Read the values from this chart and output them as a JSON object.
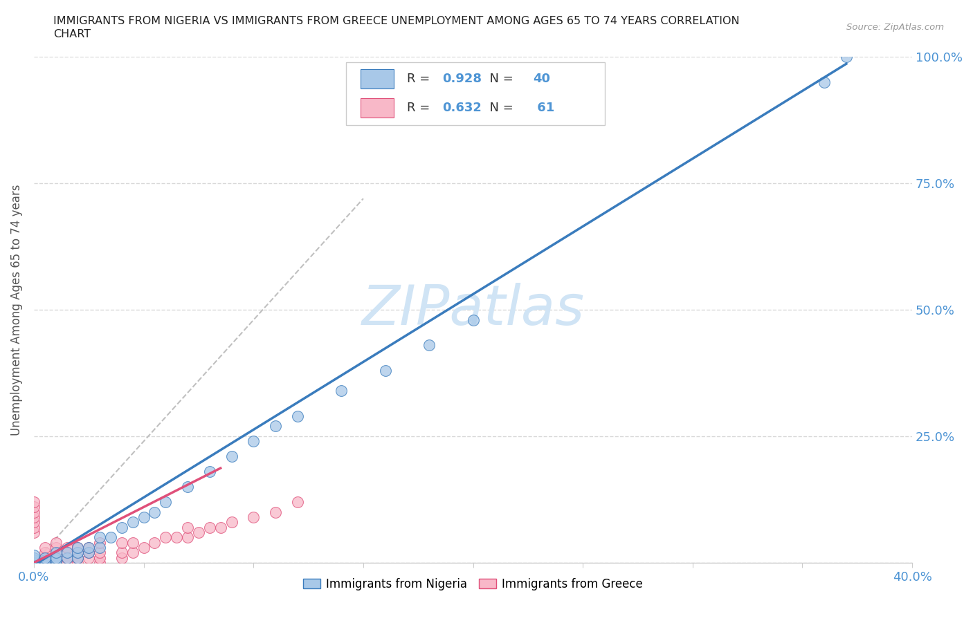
{
  "title_line1": "IMMIGRANTS FROM NIGERIA VS IMMIGRANTS FROM GREECE UNEMPLOYMENT AMONG AGES 65 TO 74 YEARS CORRELATION",
  "title_line2": "CHART",
  "source": "Source: ZipAtlas.com",
  "ylabel": "Unemployment Among Ages 65 to 74 years",
  "xlim": [
    0.0,
    0.4
  ],
  "ylim": [
    0.0,
    1.0
  ],
  "xticks": [
    0.0,
    0.05,
    0.1,
    0.15,
    0.2,
    0.25,
    0.3,
    0.35,
    0.4
  ],
  "yticks": [
    0.0,
    0.25,
    0.5,
    0.75,
    1.0
  ],
  "nigeria_color": "#a8c8e8",
  "greece_color": "#f8b8c8",
  "nigeria_R": 0.928,
  "nigeria_N": 40,
  "greece_R": 0.632,
  "greece_N": 61,
  "nigeria_line_color": "#3a7cbd",
  "greece_line_color": "#e0507a",
  "ref_line_color": "#c0c0c0",
  "watermark": "ZIPatlas",
  "watermark_color": "#d0e4f5",
  "legend_label_nigeria": "Immigrants from Nigeria",
  "legend_label_greece": "Immigrants from Greece",
  "nigeria_scatter_x": [
    0.0,
    0.0,
    0.0,
    0.0,
    0.0,
    0.0,
    0.005,
    0.005,
    0.005,
    0.01,
    0.01,
    0.01,
    0.01,
    0.015,
    0.015,
    0.02,
    0.02,
    0.02,
    0.025,
    0.025,
    0.03,
    0.03,
    0.035,
    0.04,
    0.045,
    0.05,
    0.055,
    0.06,
    0.07,
    0.08,
    0.09,
    0.1,
    0.11,
    0.12,
    0.14,
    0.16,
    0.18,
    0.2,
    0.36,
    0.37
  ],
  "nigeria_scatter_y": [
    0.0,
    0.0,
    0.0,
    0.005,
    0.01,
    0.015,
    0.0,
    0.005,
    0.01,
    0.0,
    0.005,
    0.01,
    0.02,
    0.01,
    0.02,
    0.01,
    0.02,
    0.03,
    0.02,
    0.03,
    0.03,
    0.05,
    0.05,
    0.07,
    0.08,
    0.09,
    0.1,
    0.12,
    0.15,
    0.18,
    0.21,
    0.24,
    0.27,
    0.29,
    0.34,
    0.38,
    0.43,
    0.48,
    0.95,
    1.0
  ],
  "greece_scatter_x": [
    0.0,
    0.0,
    0.0,
    0.0,
    0.0,
    0.0,
    0.0,
    0.0,
    0.0,
    0.0,
    0.0,
    0.0,
    0.0,
    0.0,
    0.0,
    0.005,
    0.005,
    0.005,
    0.005,
    0.005,
    0.005,
    0.01,
    0.01,
    0.01,
    0.01,
    0.01,
    0.01,
    0.01,
    0.015,
    0.015,
    0.015,
    0.015,
    0.02,
    0.02,
    0.02,
    0.02,
    0.025,
    0.025,
    0.025,
    0.03,
    0.03,
    0.03,
    0.03,
    0.04,
    0.04,
    0.04,
    0.045,
    0.045,
    0.05,
    0.055,
    0.06,
    0.065,
    0.07,
    0.07,
    0.075,
    0.08,
    0.085,
    0.09,
    0.1,
    0.11,
    0.12
  ],
  "greece_scatter_y": [
    0.0,
    0.0,
    0.0,
    0.0,
    0.0,
    0.0,
    0.0,
    0.0,
    0.06,
    0.07,
    0.08,
    0.09,
    0.1,
    0.11,
    0.12,
    0.0,
    0.0,
    0.005,
    0.01,
    0.02,
    0.03,
    0.0,
    0.0,
    0.005,
    0.01,
    0.02,
    0.03,
    0.04,
    0.0,
    0.01,
    0.02,
    0.03,
    0.0,
    0.01,
    0.02,
    0.03,
    0.01,
    0.02,
    0.03,
    0.0,
    0.01,
    0.02,
    0.04,
    0.01,
    0.02,
    0.04,
    0.02,
    0.04,
    0.03,
    0.04,
    0.05,
    0.05,
    0.05,
    0.07,
    0.06,
    0.07,
    0.07,
    0.08,
    0.09,
    0.1,
    0.12
  ],
  "background_color": "#ffffff",
  "grid_color": "#d8d8d8",
  "tick_color": "#4d94d4",
  "title_color": "#222222",
  "ylabel_color": "#555555"
}
